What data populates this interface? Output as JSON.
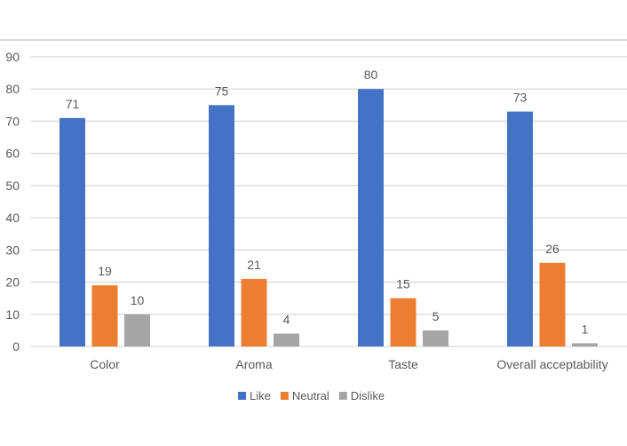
{
  "chart_data": {
    "type": "bar",
    "title": "",
    "xlabel": "",
    "ylabel": "",
    "categories": [
      "Color",
      "Aroma",
      "Taste",
      "Overall acceptability"
    ],
    "series": [
      {
        "name": "Like",
        "color": "#4472C4",
        "values": [
          71,
          75,
          80,
          73
        ]
      },
      {
        "name": "Neutral",
        "color": "#ED7D31",
        "values": [
          19,
          21,
          15,
          26
        ]
      },
      {
        "name": "Dislike",
        "color": "#A5A5A5",
        "values": [
          10,
          4,
          5,
          1
        ]
      }
    ],
    "ylim": [
      0,
      90
    ],
    "yticks": [
      0,
      10,
      20,
      30,
      40,
      50,
      60,
      70,
      80,
      90
    ],
    "grid": true,
    "legend": "bottom",
    "data_labels": true
  }
}
